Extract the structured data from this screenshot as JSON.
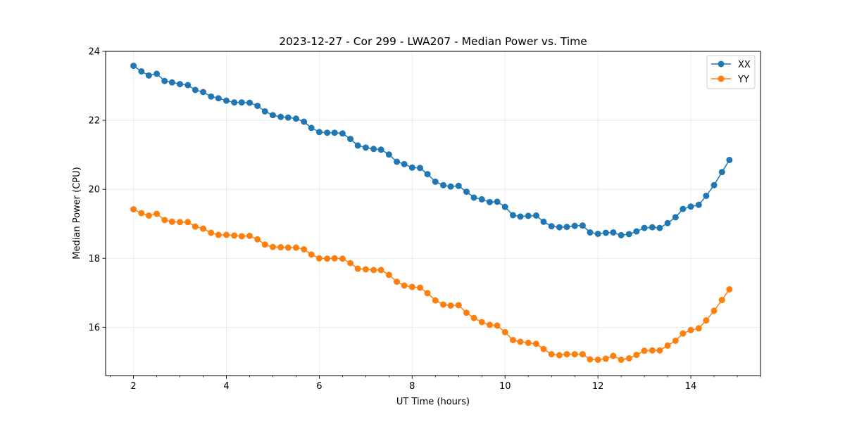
{
  "chart_data": {
    "type": "line",
    "title": "2023-12-27 - Cor 299 - LWA207 - Median Power vs. Time",
    "xlabel": "UT Time (hours)",
    "ylabel": "Median Power (CPU)",
    "xlim": [
      1.4,
      15.5
    ],
    "ylim": [
      14.6,
      24.0
    ],
    "xticks": [
      2,
      4,
      6,
      8,
      10,
      12,
      14
    ],
    "yticks": [
      16,
      18,
      20,
      22,
      24
    ],
    "grid": true,
    "legend_location": "top-right",
    "x": [
      2.0,
      2.17,
      2.33,
      2.5,
      2.67,
      2.83,
      3.0,
      3.17,
      3.33,
      3.5,
      3.67,
      3.83,
      4.0,
      4.17,
      4.33,
      4.5,
      4.67,
      4.83,
      5.0,
      5.17,
      5.33,
      5.5,
      5.67,
      5.83,
      6.0,
      6.17,
      6.33,
      6.5,
      6.67,
      6.83,
      7.0,
      7.17,
      7.33,
      7.5,
      7.67,
      7.83,
      8.0,
      8.17,
      8.33,
      8.5,
      8.67,
      8.83,
      9.0,
      9.17,
      9.33,
      9.5,
      9.67,
      9.83,
      10.0,
      10.17,
      10.33,
      10.5,
      10.67,
      10.83,
      11.0,
      11.17,
      11.33,
      11.5,
      11.67,
      11.83,
      12.0,
      12.17,
      12.33,
      12.5,
      12.67,
      12.83,
      13.0,
      13.17,
      13.33,
      13.5,
      13.67,
      13.83,
      14.0,
      14.17,
      14.33,
      14.5,
      14.67,
      14.83
    ],
    "series": [
      {
        "name": "XX",
        "color": "#1f77b4",
        "values": [
          23.58,
          23.42,
          23.3,
          23.35,
          23.14,
          23.1,
          23.05,
          23.02,
          22.88,
          22.82,
          22.69,
          22.64,
          22.57,
          22.52,
          22.52,
          22.51,
          22.42,
          22.26,
          22.15,
          22.1,
          22.08,
          22.05,
          21.96,
          21.78,
          21.66,
          21.64,
          21.64,
          21.62,
          21.46,
          21.27,
          21.21,
          21.17,
          21.15,
          21.01,
          20.8,
          20.73,
          20.63,
          20.62,
          20.44,
          20.22,
          20.12,
          20.08,
          20.1,
          19.93,
          19.76,
          19.71,
          19.63,
          19.64,
          19.49,
          19.25,
          19.21,
          19.23,
          19.24,
          19.06,
          18.93,
          18.9,
          18.91,
          18.94,
          18.95,
          18.75,
          18.71,
          18.74,
          18.75,
          18.67,
          18.7,
          18.78,
          18.88,
          18.9,
          18.88,
          19.02,
          19.19,
          19.43,
          19.5,
          19.55,
          19.81,
          20.12,
          20.5,
          20.85
        ]
      },
      {
        "name": "YY",
        "color": "#ff7f0e",
        "values": [
          19.42,
          19.31,
          19.24,
          19.29,
          19.11,
          19.06,
          19.05,
          19.05,
          18.92,
          18.86,
          18.74,
          18.68,
          18.68,
          18.66,
          18.64,
          18.65,
          18.55,
          18.4,
          18.33,
          18.32,
          18.31,
          18.31,
          18.26,
          18.11,
          18.0,
          17.99,
          18.0,
          17.99,
          17.86,
          17.7,
          17.68,
          17.66,
          17.66,
          17.52,
          17.32,
          17.21,
          17.17,
          17.15,
          16.99,
          16.78,
          16.66,
          16.63,
          16.64,
          16.42,
          16.27,
          16.15,
          16.07,
          16.05,
          15.86,
          15.63,
          15.58,
          15.55,
          15.52,
          15.37,
          15.22,
          15.19,
          15.22,
          15.22,
          15.22,
          15.07,
          15.06,
          15.09,
          15.17,
          15.06,
          15.1,
          15.2,
          15.32,
          15.33,
          15.33,
          15.47,
          15.61,
          15.82,
          15.92,
          15.97,
          16.2,
          16.48,
          16.79,
          17.1
        ]
      }
    ]
  }
}
